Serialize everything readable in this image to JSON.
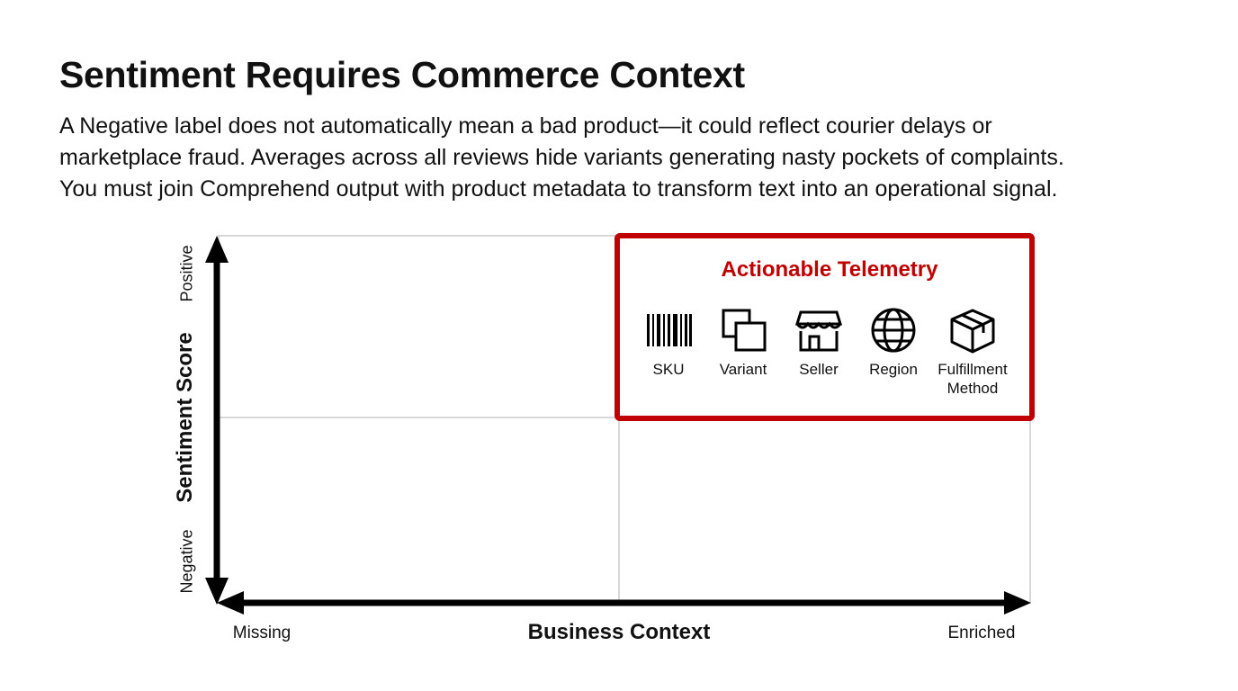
{
  "header": {
    "title": "Sentiment Requires Commerce Context",
    "body": [
      "A Negative label does not automatically mean a bad product—it could reflect courier delays or",
      "marketplace fraud. Averages across all reviews hide variants generating nasty pockets of complaints.",
      "You must join Comprehend output with product metadata to transform text into an operational signal."
    ]
  },
  "diagram": {
    "y_axis": {
      "label": "Sentiment Score",
      "top": "Positive",
      "bottom": "Negative"
    },
    "x_axis": {
      "label": "Business Context",
      "left": "Missing",
      "right": "Enriched"
    },
    "highlight": {
      "title": "Actionable Telemetry",
      "items": [
        "SKU",
        "Variant",
        "Seller",
        "Region",
        "Fulfillment Method"
      ]
    }
  }
}
